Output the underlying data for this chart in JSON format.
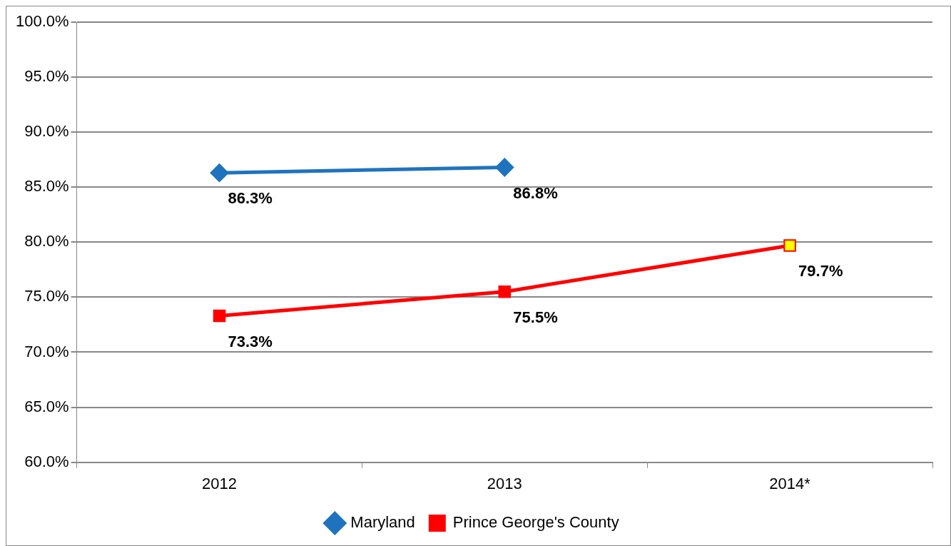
{
  "chart_data": {
    "type": "line",
    "categories": [
      "2012",
      "2013",
      "2014*"
    ],
    "series": [
      {
        "name": "Maryland",
        "color": "#1f73be",
        "marker": "diamond",
        "values": [
          86.3,
          86.8,
          null
        ],
        "value_labels": [
          "86.3%",
          "86.8%",
          null
        ]
      },
      {
        "name": "Prince George's County",
        "color": "#ff0000",
        "colors": [
          "#ff0000",
          "#ff0000",
          "#ffff00"
        ],
        "marker": "square",
        "values": [
          73.3,
          75.5,
          79.7
        ],
        "value_labels": [
          "73.3%",
          "75.5%",
          "79.7%"
        ]
      }
    ],
    "ylim": [
      60,
      100
    ],
    "yticks": [
      {
        "value": 60,
        "label": "60.0%"
      },
      {
        "value": 65,
        "label": "65.0%"
      },
      {
        "value": 70,
        "label": "70.0%"
      },
      {
        "value": 75,
        "label": "75.0%"
      },
      {
        "value": 80,
        "label": "80.0%"
      },
      {
        "value": 85,
        "label": "85.0%"
      },
      {
        "value": 90,
        "label": "90.0%"
      },
      {
        "value": 95,
        "label": "95.0%"
      },
      {
        "value": 100,
        "label": "100.0%"
      }
    ],
    "grid": "y",
    "legend": "bottom",
    "line_style": "solid"
  }
}
